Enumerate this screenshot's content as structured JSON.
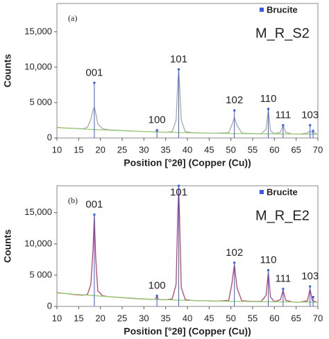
{
  "chart_data": [
    {
      "type": "line",
      "panel_label": "(a)",
      "sample": "M_R_S2",
      "xlabel": "Position [°2θ] (Copper (Cu))",
      "ylabel": "Counts",
      "xlim": [
        10,
        70
      ],
      "xticks": [
        10,
        15,
        20,
        25,
        30,
        35,
        40,
        45,
        50,
        55,
        60,
        65,
        70
      ],
      "ylim": [
        0,
        19000
      ],
      "yticks": [
        0,
        {
          "value": 5000,
          "label": "5 000"
        },
        {
          "value": 10000,
          "label": "10,000"
        },
        {
          "value": 15000,
          "label": "15,000"
        }
      ],
      "legend": "upper right",
      "series": [
        {
          "type": "line",
          "color": "#a8a8a8",
          "x": [
            10,
            12,
            14,
            16,
            17,
            17.8,
            18.3,
            18.6,
            18.9,
            19.4,
            20.5,
            22,
            25,
            28,
            31,
            32.6,
            33,
            33.4,
            35,
            36.5,
            37.4,
            37.8,
            38,
            38.2,
            38.6,
            39.5,
            41,
            44,
            47,
            49.5,
            50.2,
            50.8,
            51.4,
            52.5,
            55,
            57,
            58.1,
            58.6,
            59.1,
            60,
            61.4,
            62,
            62.6,
            64,
            66,
            67.6,
            68.2,
            68.7,
            69.2,
            70
          ],
          "values": [
            1500,
            1400,
            1350,
            1300,
            1500,
            2600,
            4000,
            4300,
            3600,
            2000,
            1300,
            1150,
            1050,
            950,
            880,
            860,
            1100,
            850,
            800,
            900,
            2500,
            8000,
            9500,
            7500,
            2500,
            900,
            750,
            700,
            680,
            750,
            1800,
            2900,
            1800,
            700,
            620,
            620,
            1200,
            4000,
            1000,
            600,
            800,
            1800,
            800,
            580,
            560,
            700,
            1000,
            750,
            700,
            500
          ]
        },
        {
          "type": "line",
          "color": "#9fcf7f",
          "x": [
            10,
            20,
            30,
            40,
            50,
            60,
            70
          ],
          "values": [
            1450,
            1150,
            900,
            720,
            630,
            570,
            520
          ]
        },
        {
          "type": "stick",
          "name": "Brucite",
          "color": "#3a5be0",
          "x": [
            18.6,
            33.0,
            38.0,
            50.8,
            58.6,
            62.0,
            68.2,
            68.9
          ],
          "values": [
            7800,
            1100,
            9700,
            3900,
            4100,
            1800,
            1800,
            1000
          ],
          "peak_labels": [
            "001",
            "100",
            "101",
            "102",
            "110",
            "111",
            "103",
            null
          ]
        }
      ]
    },
    {
      "type": "line",
      "panel_label": "(b)",
      "sample": "M_R_E2",
      "xlabel": "Position [°2θ] (Copper (Cu))",
      "ylabel": "Counts",
      "xlim": [
        10,
        70
      ],
      "xticks": [
        10,
        15,
        20,
        25,
        30,
        35,
        40,
        45,
        50,
        55,
        60,
        65,
        70
      ],
      "ylim": [
        0,
        19300
      ],
      "yticks": [
        0,
        {
          "value": 5000,
          "label": "5 000"
        },
        {
          "value": 10000,
          "label": "10,000"
        },
        {
          "value": 15000,
          "label": "15,000"
        }
      ],
      "legend": "upper right",
      "series": [
        {
          "type": "line",
          "color": "#c0406a",
          "x": [
            10,
            12,
            14,
            16,
            17,
            17.8,
            18.3,
            18.6,
            18.9,
            19.4,
            20.5,
            22,
            25,
            28,
            31,
            32.6,
            33,
            33.4,
            35,
            36.5,
            37.4,
            37.8,
            38,
            38.2,
            38.6,
            39.5,
            41,
            44,
            47,
            49.5,
            50.2,
            50.8,
            51.4,
            52.5,
            55,
            57,
            58.1,
            58.6,
            59.1,
            60,
            61.4,
            62,
            62.6,
            64,
            66,
            67.6,
            68.2,
            68.7,
            69.2,
            70
          ],
          "values": [
            2200,
            2050,
            1900,
            1800,
            1900,
            3500,
            9000,
            14500,
            8000,
            2500,
            1700,
            1550,
            1400,
            1250,
            1150,
            1150,
            1600,
            1100,
            1050,
            1200,
            3500,
            15000,
            19000,
            14000,
            3000,
            1100,
            950,
            900,
            850,
            950,
            3500,
            6700,
            3000,
            900,
            800,
            800,
            1800,
            5500,
            1500,
            750,
            1100,
            2600,
            1000,
            720,
            700,
            900,
            2800,
            1000,
            800,
            650
          ]
        },
        {
          "type": "line",
          "color": "#8fcf6f",
          "x": [
            10,
            20,
            30,
            40,
            50,
            60,
            70
          ],
          "values": [
            2150,
            1650,
            1200,
            950,
            820,
            730,
            680
          ]
        },
        {
          "type": "stick",
          "name": "Brucite",
          "color": "#3a5be0",
          "x": [
            18.6,
            33.0,
            38.0,
            50.8,
            58.6,
            62.0,
            68.2,
            68.9
          ],
          "values": [
            14700,
            1700,
            19300,
            7000,
            5800,
            2800,
            3200,
            1500
          ],
          "peak_labels": [
            "001",
            "100",
            "101",
            "102",
            "110",
            "111",
            "103",
            null
          ]
        }
      ]
    }
  ]
}
